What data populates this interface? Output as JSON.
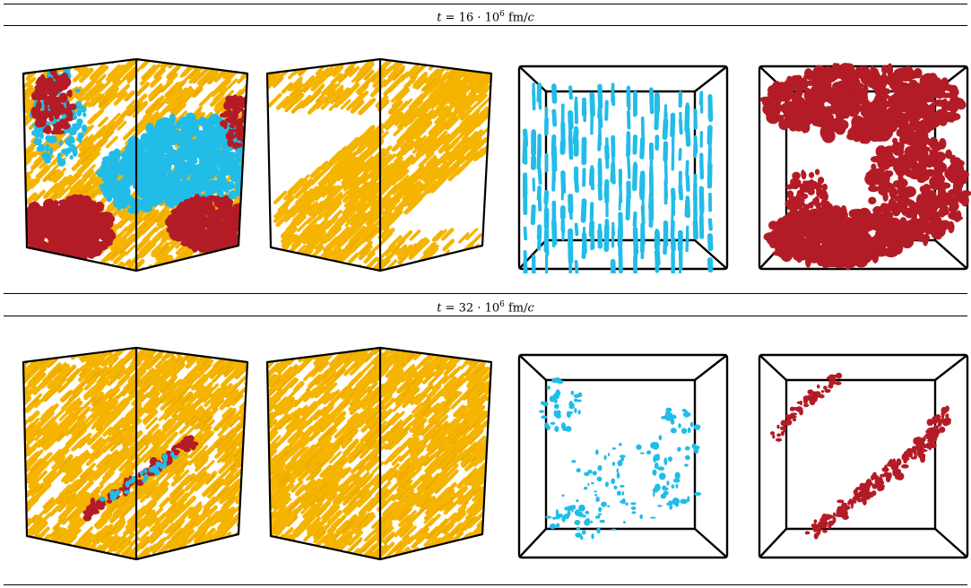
{
  "rows": [
    {
      "label_t": "t",
      "label_eq": " = ",
      "label_num": "16 · 10",
      "label_exp": "6",
      "label_unit": " fm/",
      "label_c": "c"
    },
    {
      "label_t": "t",
      "label_eq": " = ",
      "label_num": "32 · 10",
      "label_exp": "6",
      "label_unit": " fm/",
      "label_c": "c"
    }
  ],
  "colors": {
    "yellow": "#f5b400",
    "yellow_edge": "#e39a00",
    "blue": "#22bce8",
    "red": "#b31c26",
    "frame": "#000000"
  }
}
